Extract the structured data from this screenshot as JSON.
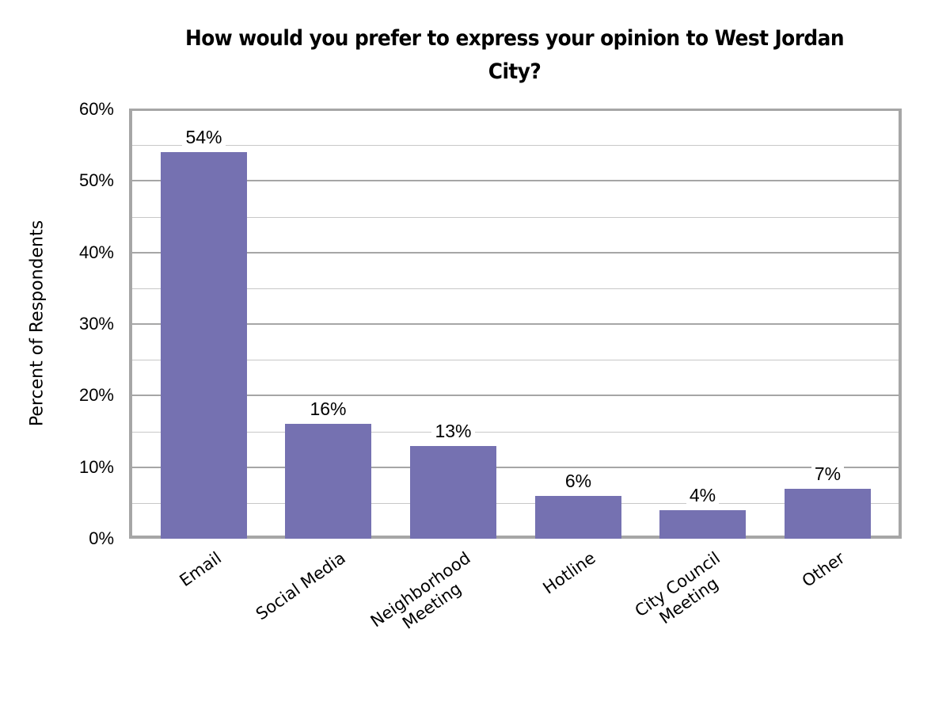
{
  "chart_data": {
    "type": "bar",
    "title": "How would you prefer to express your opinion to West Jordan City?",
    "title_lines": [
      "How would you prefer to express your opinion to West Jordan",
      "City?"
    ],
    "xlabel": "",
    "ylabel": "Percent of Respondents",
    "ylim": [
      0,
      60
    ],
    "y_ticks": [
      "0%",
      "10%",
      "20%",
      "30%",
      "40%",
      "50%",
      "60%"
    ],
    "grid": true,
    "legend": null,
    "categories": [
      "Email",
      "Social Media",
      "Neighborhood Meeting",
      "Hotline",
      "City Council Meeting",
      "Other"
    ],
    "category_lines": [
      [
        "Email"
      ],
      [
        "Social Media"
      ],
      [
        "Neighborhood",
        "Meeting"
      ],
      [
        "Hotline"
      ],
      [
        "City Council",
        "Meeting"
      ],
      [
        "Other"
      ]
    ],
    "values": [
      54,
      16,
      13,
      6,
      4,
      7
    ],
    "value_labels": [
      "54%",
      "16%",
      "13%",
      "6%",
      "4%",
      "7%"
    ],
    "bar_color": "#7571b1"
  }
}
